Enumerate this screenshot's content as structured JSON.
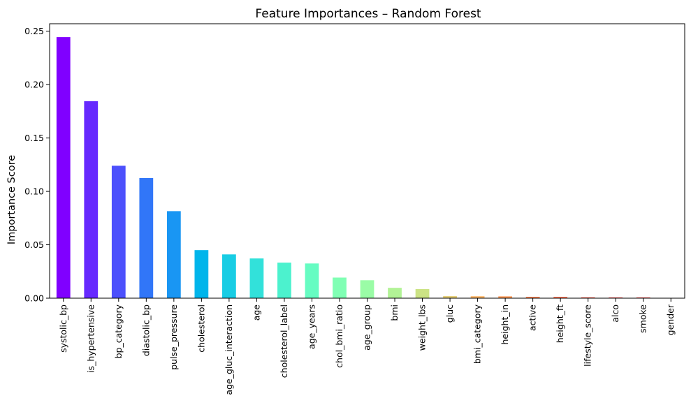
{
  "chart_data": {
    "type": "bar",
    "title": "Feature Importances – Random Forest",
    "xlabel": "",
    "ylabel": "Importance Score",
    "ylim": [
      0,
      0.257
    ],
    "yticks": [
      "0.00",
      "0.05",
      "0.10",
      "0.15",
      "0.20",
      "0.25"
    ],
    "grid": false,
    "colormap": "rainbow",
    "categories": [
      "systolic_bp",
      "is_hypertensive",
      "bp_category",
      "diastolic_bp",
      "pulse_pressure",
      "cholesterol",
      "age_gluc_interaction",
      "age",
      "cholesterol_label",
      "age_years",
      "chol_bmi_ratio",
      "age_group",
      "bmi",
      "weight_lbs",
      "gluc",
      "bmi_category",
      "height_in",
      "active",
      "height_ft",
      "lifestyle_score",
      "alco",
      "smoke",
      "gender"
    ],
    "values": [
      0.2445,
      0.1845,
      0.124,
      0.1125,
      0.0815,
      0.045,
      0.041,
      0.0372,
      0.0333,
      0.0325,
      0.0193,
      0.0168,
      0.0097,
      0.0085,
      0.0019,
      0.0018,
      0.0017,
      0.0012,
      0.0011,
      0.0007,
      0.0006,
      0.0006,
      0.0002
    ],
    "colors": [
      "#8000ff",
      "#6629fe",
      "#4c50fc",
      "#3176f8",
      "#1996f3",
      "#00b5eb",
      "#18cde4",
      "#32e1da",
      "#4cf2ce",
      "#66fcc2",
      "#80ffb4",
      "#9afca6",
      "#b2f396",
      "#cce385",
      "#e6ce74",
      "#ffb562",
      "#ff9650",
      "#ff763e",
      "#ff5029",
      "#ff2a15",
      "#ff0000",
      "#ff0000",
      "#ff0000"
    ]
  }
}
